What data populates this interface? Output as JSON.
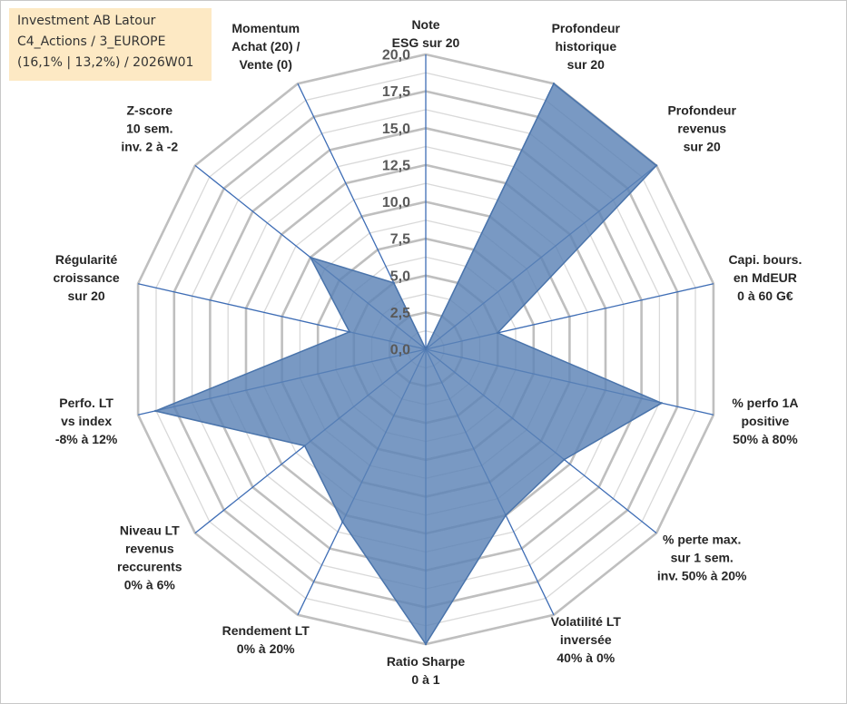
{
  "info_box": {
    "line1": "Investment AB Latour",
    "line2": "C4_Actions / 3_EUROPE",
    "line3": "(16,1% | 13,2%) / 2026W01"
  },
  "colors": {
    "series_fill": "#5b83b6",
    "series_stroke": "#4a74ab",
    "spoke": "#3e6db5",
    "ring_major": "#bfbfbf",
    "ring_minor": "#d9d9d9",
    "info_bg": "#fde9c4"
  },
  "chart_data": {
    "type": "radar",
    "r_range": [
      0,
      20
    ],
    "tick_values": [
      0,
      2.5,
      5,
      7.5,
      10,
      12.5,
      15,
      17.5,
      20
    ],
    "tick_labels": [
      "0,0",
      "2,5",
      "5,0",
      "7,5",
      "10,0",
      "12,5",
      "15,0",
      "17,5",
      "20,0"
    ],
    "grid": true,
    "axes": [
      {
        "label": [
          "Note",
          "ESG sur 20"
        ],
        "value": 0
      },
      {
        "label": [
          "Profondeur",
          "historique",
          "sur 20"
        ],
        "value": 20
      },
      {
        "label": [
          "Profondeur",
          "revenus",
          "sur 20"
        ],
        "value": 20
      },
      {
        "label": [
          "Capi. bours.",
          "en MdEUR",
          "0 à 60 G€"
        ],
        "value": 5
      },
      {
        "label": [
          "% perfo 1A",
          "positive",
          "50% à 80%"
        ],
        "value": 16.4
      },
      {
        "label": [
          "% perte max.",
          "sur 1 sem.",
          "inv. 50% à 20%"
        ],
        "value": 12
      },
      {
        "label": [
          "Volatilité LT",
          "inversée",
          "40% à 0%"
        ],
        "value": 12.5
      },
      {
        "label": [
          "Ratio Sharpe",
          "0 à 1"
        ],
        "value": 20
      },
      {
        "label": [
          "Rendement LT",
          "0% à 20%"
        ],
        "value": 13
      },
      {
        "label": [
          "Niveau LT",
          "revenus",
          "reccurents",
          "0% à 6%"
        ],
        "value": 10.5
      },
      {
        "label": [
          "Perfo. LT",
          "vs index",
          "-8% à 12%"
        ],
        "value": 18.8
      },
      {
        "label": [
          "Régularité",
          "croissance",
          "sur 20"
        ],
        "value": 5.3
      },
      {
        "label": [
          "Z-score",
          "10 sem.",
          "inv. 2 à -2"
        ],
        "value": 10
      },
      {
        "label": [
          "Momentum",
          "Achat (20) /",
          "Vente (0)"
        ],
        "value": 5
      }
    ]
  }
}
